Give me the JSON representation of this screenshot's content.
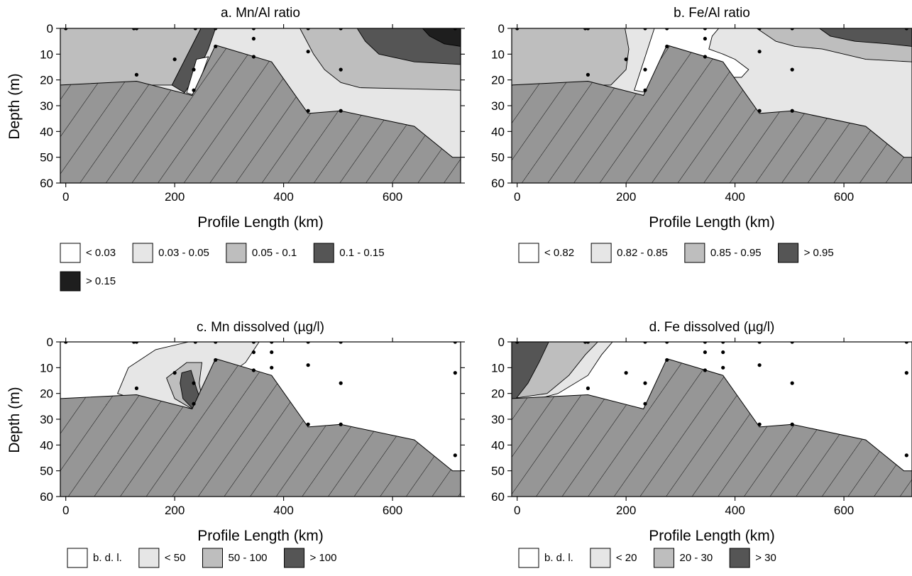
{
  "colors": {
    "bdl": "#ffffff",
    "lightgray": "#e6e6e6",
    "midgray": "#bebebe",
    "darkgray": "#555555",
    "black": "#1e1e1e",
    "seabed": "#969696",
    "outline": "#000000"
  },
  "chart_data": [
    {
      "type": "contour",
      "title": "a. Mn/Al ratio",
      "xlabel": "Profile Length (km)",
      "ylabel": "Depth (m)",
      "xlim": [
        -10,
        725
      ],
      "ylim": [
        60,
        0
      ],
      "xticks": [
        0,
        200,
        400,
        600
      ],
      "yticks": [
        0,
        10,
        20,
        30,
        40,
        50,
        60
      ],
      "legend": [
        {
          "label": "< 0.03",
          "color": "#ffffff"
        },
        {
          "label": "0.03 - 0.05",
          "color": "#e6e6e6"
        },
        {
          "label": "0.05 - 0.1",
          "color": "#bebebe"
        },
        {
          "label": "0.1 - 0.15",
          "color": "#555555"
        },
        {
          "label": "> 0.15",
          "color": "#1e1e1e"
        }
      ],
      "background_color": "#e6e6e6",
      "regions": [
        {
          "class": "0.05 - 0.1",
          "color": "#bebebe",
          "polygon": [
            [
              -10,
              0
            ],
            [
              248,
              0
            ],
            [
              195,
              22
            ],
            [
              -10,
              22
            ]
          ]
        },
        {
          "class": "0.05 - 0.1",
          "color": "#bebebe",
          "polygon": [
            [
              430,
              0
            ],
            [
              725,
              0
            ],
            [
              725,
              24
            ],
            [
              640,
              23.5
            ],
            [
              540,
              23
            ],
            [
              505,
              21
            ],
            [
              475,
              16
            ],
            [
              455,
              10
            ],
            [
              440,
              4
            ]
          ]
        },
        {
          "class": "0.1 - 0.15",
          "color": "#555555",
          "polygon": [
            [
              248,
              0
            ],
            [
              275,
              0
            ],
            [
              262,
              8
            ],
            [
              240,
              18
            ],
            [
              218,
              25
            ],
            [
              195,
              22
            ]
          ]
        },
        {
          "class": "0.1 - 0.15",
          "color": "#555555",
          "polygon": [
            [
              535,
              0
            ],
            [
              725,
              0
            ],
            [
              725,
              14
            ],
            [
              640,
              13
            ],
            [
              575,
              10
            ],
            [
              550,
              5
            ]
          ]
        },
        {
          "class": "> 0.15",
          "color": "#1e1e1e",
          "polygon": [
            [
              655,
              0
            ],
            [
              725,
              0
            ],
            [
              725,
              7
            ],
            [
              695,
              6
            ],
            [
              668,
              3
            ]
          ]
        },
        {
          "class": "< 0.03",
          "color": "#ffffff",
          "polygon": [
            [
              240,
              12
            ],
            [
              262,
              11
            ],
            [
              250,
              18
            ],
            [
              238,
              26
            ],
            [
              222,
              25
            ]
          ]
        }
      ],
      "stations": [
        [
          0,
          0
        ],
        [
          125,
          0
        ],
        [
          130,
          0
        ],
        [
          238,
          0
        ],
        [
          275,
          0
        ],
        [
          345,
          0
        ],
        [
          445,
          0
        ],
        [
          505,
          0
        ],
        [
          715,
          0
        ],
        [
          345,
          4
        ],
        [
          130,
          18
        ],
        [
          275,
          7
        ],
        [
          345,
          11
        ],
        [
          445,
          9
        ],
        [
          505,
          16
        ],
        [
          200,
          12
        ],
        [
          235,
          16
        ],
        [
          235,
          24
        ],
        [
          445,
          32
        ],
        [
          505,
          32
        ]
      ]
    },
    {
      "type": "contour",
      "title": "b. Fe/Al ratio",
      "xlabel": "Profile Length (km)",
      "ylabel": "",
      "xlim": [
        -10,
        725
      ],
      "ylim": [
        60,
        0
      ],
      "xticks": [
        0,
        200,
        400,
        600
      ],
      "yticks": [
        0,
        10,
        20,
        30,
        40,
        50,
        60
      ],
      "legend": [
        {
          "label": "< 0.82",
          "color": "#ffffff"
        },
        {
          "label": "0.82 - 0.85",
          "color": "#e6e6e6"
        },
        {
          "label": "0.85 - 0.95",
          "color": "#bebebe"
        },
        {
          "label": "> 0.95",
          "color": "#555555"
        }
      ],
      "background_color": "#e6e6e6",
      "regions": [
        {
          "class": "0.85 - 0.95",
          "color": "#bebebe",
          "polygon": [
            [
              -10,
              0
            ],
            [
              198,
              0
            ],
            [
              205,
              8
            ],
            [
              200,
              16
            ],
            [
              172,
              22
            ],
            [
              -10,
              22
            ]
          ]
        },
        {
          "class": "< 0.82",
          "color": "#ffffff",
          "polygon": [
            [
              252,
              0
            ],
            [
              370,
              0
            ],
            [
              358,
              3
            ],
            [
              352,
              8
            ],
            [
              378,
              10
            ],
            [
              400,
              12
            ],
            [
              425,
              16
            ],
            [
              412,
              19
            ],
            [
              395,
              19
            ],
            [
              275,
              19
            ],
            [
              240,
              25
            ],
            [
              215,
              24
            ]
          ]
        },
        {
          "class": "0.85 - 0.95",
          "color": "#bebebe",
          "polygon": [
            [
              440,
              0
            ],
            [
              725,
              0
            ],
            [
              725,
              13
            ],
            [
              640,
              12
            ],
            [
              560,
              8
            ],
            [
              510,
              7
            ],
            [
              475,
              5
            ]
          ]
        },
        {
          "class": "> 0.95",
          "color": "#555555",
          "polygon": [
            [
              555,
              0
            ],
            [
              725,
              0
            ],
            [
              725,
              7
            ],
            [
              680,
              6
            ],
            [
              620,
              5
            ],
            [
              575,
              3
            ]
          ]
        }
      ],
      "stations": [
        [
          0,
          0
        ],
        [
          125,
          0
        ],
        [
          130,
          0
        ],
        [
          235,
          0
        ],
        [
          275,
          0
        ],
        [
          345,
          0
        ],
        [
          445,
          0
        ],
        [
          505,
          0
        ],
        [
          715,
          0
        ],
        [
          345,
          4
        ],
        [
          130,
          18
        ],
        [
          200,
          12
        ],
        [
          235,
          16
        ],
        [
          235,
          24
        ],
        [
          275,
          7
        ],
        [
          345,
          11
        ],
        [
          445,
          9
        ],
        [
          505,
          16
        ],
        [
          445,
          32
        ],
        [
          505,
          32
        ]
      ]
    },
    {
      "type": "contour",
      "title": "c. Mn dissolved (µg/l)",
      "xlabel": "Profile Length (km)",
      "ylabel": "Depth (m)",
      "xlim": [
        -10,
        725
      ],
      "ylim": [
        60,
        0
      ],
      "xticks": [
        0,
        200,
        400,
        600
      ],
      "yticks": [
        0,
        10,
        20,
        30,
        40,
        50,
        60
      ],
      "legend": [
        {
          "label": "b. d. l.",
          "color": "#ffffff"
        },
        {
          "label": "< 50",
          "color": "#e6e6e6"
        },
        {
          "label": "50 - 100",
          "color": "#bebebe"
        },
        {
          "label": "> 100",
          "color": "#555555"
        }
      ],
      "background_color": "#ffffff",
      "regions": [
        {
          "class": "< 50",
          "color": "#e6e6e6",
          "polygon": [
            [
              225,
              0
            ],
            [
              355,
              0
            ],
            [
              330,
              8
            ],
            [
              290,
              14
            ],
            [
              265,
              24
            ],
            [
              240,
              28
            ],
            [
              180,
              26
            ],
            [
              95,
              20
            ],
            [
              115,
              10
            ],
            [
              165,
              3
            ]
          ]
        },
        {
          "class": "50 - 100",
          "color": "#bebebe",
          "polygon": [
            [
              222,
              8
            ],
            [
              250,
              8
            ],
            [
              245,
              16
            ],
            [
              250,
              22
            ],
            [
              258,
              25
            ],
            [
              240,
              27
            ],
            [
              200,
              22
            ],
            [
              185,
              14
            ]
          ]
        },
        {
          "class": "> 100",
          "color": "#555555",
          "polygon": [
            [
              213,
              12
            ],
            [
              230,
              11
            ],
            [
              240,
              18
            ],
            [
              250,
              24
            ],
            [
              238,
              27
            ],
            [
              215,
              22
            ],
            [
              210,
              16
            ]
          ]
        }
      ],
      "stations": [
        [
          0,
          0
        ],
        [
          125,
          0
        ],
        [
          130,
          0
        ],
        [
          238,
          0
        ],
        [
          275,
          0
        ],
        [
          345,
          0
        ],
        [
          378,
          0
        ],
        [
          445,
          0
        ],
        [
          505,
          0
        ],
        [
          715,
          0
        ],
        [
          345,
          4
        ],
        [
          378,
          4
        ],
        [
          130,
          18
        ],
        [
          200,
          12
        ],
        [
          235,
          16
        ],
        [
          235,
          24
        ],
        [
          275,
          7
        ],
        [
          345,
          11
        ],
        [
          378,
          10
        ],
        [
          445,
          9
        ],
        [
          505,
          16
        ],
        [
          445,
          32
        ],
        [
          505,
          32
        ],
        [
          715,
          12
        ],
        [
          715,
          44
        ]
      ]
    },
    {
      "type": "contour",
      "title": "d. Fe dissolved (µg/l)",
      "xlabel": "Profile Length (km)",
      "ylabel": "",
      "xlim": [
        -10,
        725
      ],
      "ylim": [
        60,
        0
      ],
      "xticks": [
        0,
        200,
        400,
        600
      ],
      "yticks": [
        0,
        10,
        20,
        30,
        40,
        50,
        60
      ],
      "legend": [
        {
          "label": "b. d. l.",
          "color": "#ffffff"
        },
        {
          "label": "< 20",
          "color": "#e6e6e6"
        },
        {
          "label": "20 - 30",
          "color": "#bebebe"
        },
        {
          "label": "> 30",
          "color": "#555555"
        }
      ],
      "background_color": "#ffffff",
      "regions": [
        {
          "class": "< 20",
          "color": "#e6e6e6",
          "polygon": [
            [
              -10,
              0
            ],
            [
              175,
              0
            ],
            [
              155,
              5
            ],
            [
              130,
              13
            ],
            [
              75,
              20
            ],
            [
              40,
              22
            ],
            [
              -10,
              22
            ]
          ]
        },
        {
          "class": "20 - 30",
          "color": "#bebebe",
          "polygon": [
            [
              -10,
              0
            ],
            [
              148,
              0
            ],
            [
              125,
              5
            ],
            [
              95,
              13
            ],
            [
              55,
              20
            ],
            [
              -10,
              22
            ]
          ]
        },
        {
          "class": "> 30",
          "color": "#555555",
          "polygon": [
            [
              -10,
              0
            ],
            [
              58,
              0
            ],
            [
              40,
              8
            ],
            [
              20,
              16
            ],
            [
              -2,
              22
            ],
            [
              -10,
              22
            ]
          ]
        }
      ],
      "stations": [
        [
          0,
          0
        ],
        [
          125,
          0
        ],
        [
          130,
          0
        ],
        [
          235,
          0
        ],
        [
          275,
          0
        ],
        [
          345,
          0
        ],
        [
          378,
          0
        ],
        [
          445,
          0
        ],
        [
          505,
          0
        ],
        [
          715,
          0
        ],
        [
          345,
          4
        ],
        [
          378,
          4
        ],
        [
          130,
          18
        ],
        [
          200,
          12
        ],
        [
          235,
          16
        ],
        [
          235,
          24
        ],
        [
          275,
          7
        ],
        [
          345,
          11
        ],
        [
          378,
          10
        ],
        [
          445,
          9
        ],
        [
          505,
          16
        ],
        [
          445,
          32
        ],
        [
          505,
          32
        ],
        [
          715,
          12
        ],
        [
          715,
          44
        ]
      ]
    }
  ],
  "seabed": [
    [
      -10,
      60
    ],
    [
      -10,
      22
    ],
    [
      130,
      20.5
    ],
    [
      232,
      26
    ],
    [
      275,
      6.5
    ],
    [
      378,
      13
    ],
    [
      445,
      33
    ],
    [
      505,
      32
    ],
    [
      640,
      38
    ],
    [
      710,
      50
    ],
    [
      725,
      50
    ],
    [
      725,
      60
    ]
  ]
}
